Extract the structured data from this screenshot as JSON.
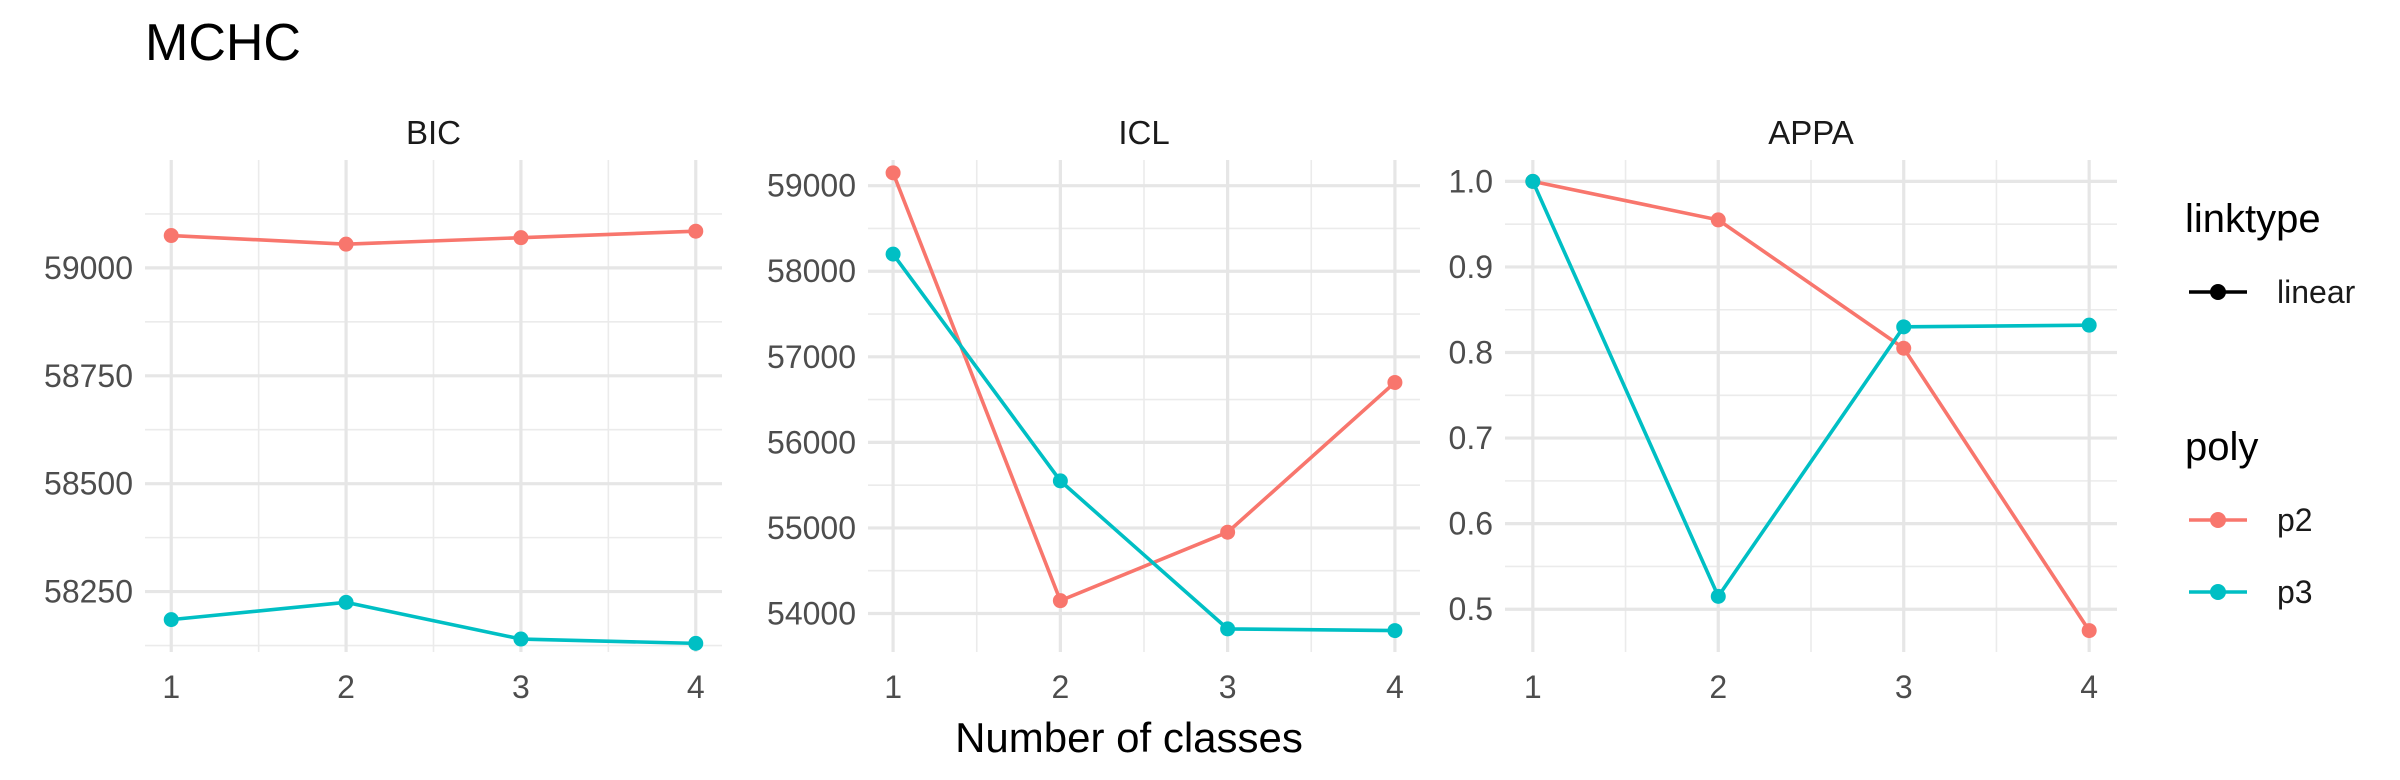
{
  "chart_data": {
    "type": "line",
    "title": "MCHC",
    "xlabel": "Number of classes",
    "ylabel": "",
    "x": [
      1,
      2,
      3,
      4
    ],
    "series_colors": {
      "p2": "#F8766D",
      "p3": "#00BFC4"
    },
    "panels": [
      {
        "name": "BIC",
        "ylim": [
          58110,
          59250
        ],
        "yticks": [
          58250,
          58500,
          58750,
          59000
        ],
        "ytick_labels": [
          "58250",
          "58500",
          "58750",
          "59000"
        ],
        "series": [
          {
            "name": "p2",
            "values": [
              59075,
              59055,
              59070,
              59085
            ]
          },
          {
            "name": "p3",
            "values": [
              58185,
              58225,
              58140,
              58130
            ]
          }
        ]
      },
      {
        "name": "ICL",
        "ylim": [
          53550,
          59300
        ],
        "yticks": [
          54000,
          55000,
          56000,
          57000,
          58000,
          59000
        ],
        "ytick_labels": [
          "54000",
          "55000",
          "56000",
          "57000",
          "58000",
          "59000"
        ],
        "series": [
          {
            "name": "p2",
            "values": [
              59150,
              54150,
              54950,
              56700
            ]
          },
          {
            "name": "p3",
            "values": [
              58200,
              55550,
              53820,
              53800
            ]
          }
        ]
      },
      {
        "name": "APPA",
        "ylim": [
          0.45,
          1.025
        ],
        "yticks": [
          0.5,
          0.6,
          0.7,
          0.8,
          0.9,
          1.0
        ],
        "ytick_labels": [
          "0.5",
          "0.6",
          "0.7",
          "0.8",
          "0.9",
          "1.0"
        ],
        "series": [
          {
            "name": "p2",
            "values": [
              1.0,
              0.955,
              0.805,
              0.475
            ]
          },
          {
            "name": "p3",
            "values": [
              1.0,
              0.515,
              0.83,
              0.832
            ]
          }
        ]
      }
    ],
    "legend": {
      "position": "right",
      "groups": [
        {
          "title": "linktype",
          "items": [
            {
              "label": "linear",
              "color": "#000000"
            }
          ]
        },
        {
          "title": "poly",
          "items": [
            {
              "label": "p2",
              "color": "#F8766D"
            },
            {
              "label": "p3",
              "color": "#00BFC4"
            }
          ]
        }
      ]
    },
    "grid": true
  }
}
